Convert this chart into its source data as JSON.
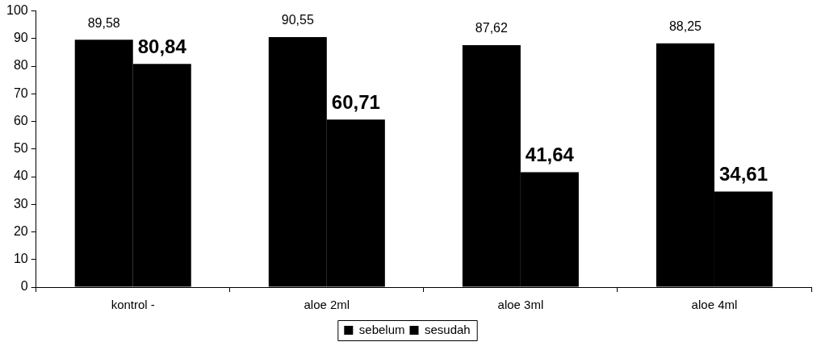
{
  "chart_data": {
    "type": "bar",
    "categories": [
      "kontrol -",
      "aloe 2ml",
      "aloe 3ml",
      "aloe 4ml"
    ],
    "series": [
      {
        "name": "sebelum",
        "color": "#000000",
        "values": [
          89.58,
          90.55,
          87.62,
          88.25
        ],
        "value_labels": [
          "89,58",
          "90,55",
          "87,62",
          "88,25"
        ]
      },
      {
        "name": "sesudah",
        "color": "#000000",
        "values": [
          80.84,
          60.71,
          41.64,
          34.61
        ],
        "value_labels": [
          "80,84",
          "60,71",
          "41,64",
          "34,61"
        ]
      }
    ],
    "ylim": [
      0,
      100
    ],
    "yticks": [
      0,
      10,
      20,
      30,
      40,
      50,
      60,
      70,
      80,
      90,
      100
    ],
    "grid": false,
    "legend": "bottom"
  }
}
